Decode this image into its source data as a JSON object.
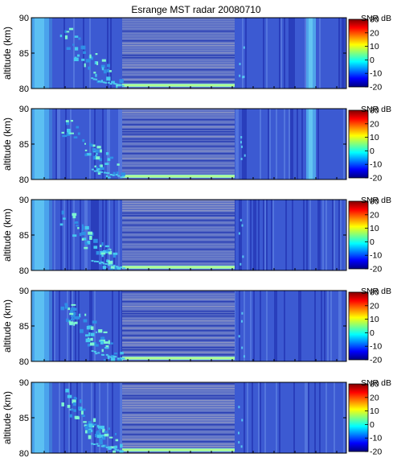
{
  "chart_data": {
    "type": "heatmap",
    "title": "Esrange MST radar 20080710",
    "panels": [
      {
        "ylabel": "altitude (km)",
        "ylim": [
          80,
          90
        ],
        "yticks": [
          "80",
          "85",
          "90"
        ],
        "xticklabels": [],
        "colorbar": {
          "label": "SNR dB",
          "range": [
            -20,
            30
          ],
          "ticks": [
            "-20",
            "-10",
            "0",
            "10",
            "20",
            "30"
          ]
        }
      },
      {
        "ylabel": "altitude (km)",
        "ylim": [
          80,
          90
        ],
        "yticks": [
          "80",
          "85",
          "90"
        ],
        "xticklabels": [],
        "colorbar": {
          "label": "SNR dB",
          "range": [
            -20,
            30
          ],
          "ticks": [
            "-20",
            "-10",
            "0",
            "10",
            "20",
            "30"
          ]
        }
      },
      {
        "ylabel": "altitude (km)",
        "ylim": [
          80,
          90
        ],
        "yticks": [
          "80",
          "85",
          "90"
        ],
        "xticklabels": [],
        "colorbar": {
          "label": "SNR dB",
          "range": [
            -20,
            30
          ],
          "ticks": [
            "-20",
            "-10",
            "0",
            "10",
            "20",
            "30"
          ]
        }
      },
      {
        "ylabel": "altitude (km)",
        "ylim": [
          80,
          90
        ],
        "yticks": [
          "80",
          "85",
          "90"
        ],
        "xticklabels": [],
        "colorbar": {
          "label": "SNR dB",
          "range": [
            -20,
            30
          ],
          "ticks": [
            "-20",
            "-10",
            "0",
            "10",
            "20",
            "30"
          ]
        }
      },
      {
        "ylabel": "altitude (km)",
        "ylim": [
          80,
          90
        ],
        "yticks": [
          "80",
          "85",
          "90"
        ],
        "xticklabels": [],
        "colorbar": {
          "label": "SNR dB",
          "range": [
            -20,
            30
          ],
          "ticks": [
            "-20",
            "-10",
            "0",
            "10",
            "20",
            "30"
          ]
        }
      }
    ],
    "colormap": "jet",
    "background_color": "#3c5ad2"
  }
}
